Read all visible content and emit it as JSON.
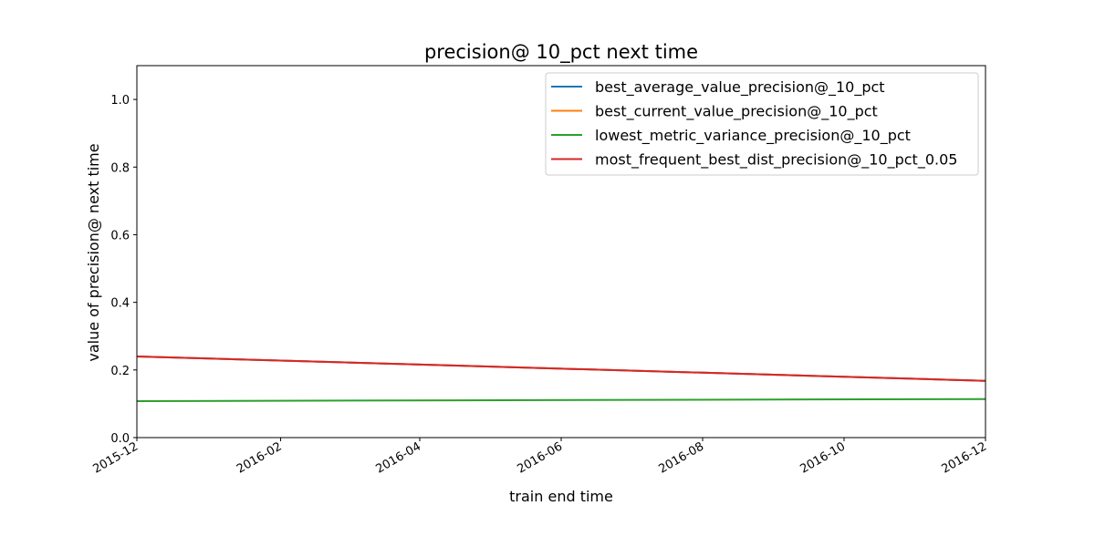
{
  "chart_data": {
    "type": "line",
    "title": "precision@ 10_pct next time",
    "xlabel": "train end time",
    "ylabel": "value of precision@ next time",
    "x": [
      "2015-12-01",
      "2016-12-01"
    ],
    "xlim": [
      "2015-12-01",
      "2016-12-01"
    ],
    "ylim": [
      0,
      1.1
    ],
    "xticks": [
      "2015-12",
      "2016-02",
      "2016-04",
      "2016-06",
      "2016-08",
      "2016-10",
      "2016-12"
    ],
    "yticks": [
      "0.0",
      "0.2",
      "0.4",
      "0.6",
      "0.8",
      "1.0"
    ],
    "grid": false,
    "legend_position": "upper right",
    "series": [
      {
        "name": "best_average_value_precision@_10_pct",
        "color": "#1f77b4",
        "values": [
          0.24,
          0.168
        ]
      },
      {
        "name": "best_current_value_precision@_10_pct",
        "color": "#ff7f0e",
        "values": [
          0.24,
          0.168
        ]
      },
      {
        "name": "lowest_metric_variance_precision@_10_pct",
        "color": "#2ca02c",
        "values": [
          0.108,
          0.114
        ]
      },
      {
        "name": "most_frequent_best_dist_precision@_10_pct_0.05",
        "color": "#d62728",
        "values": [
          0.24,
          0.168
        ]
      }
    ]
  }
}
